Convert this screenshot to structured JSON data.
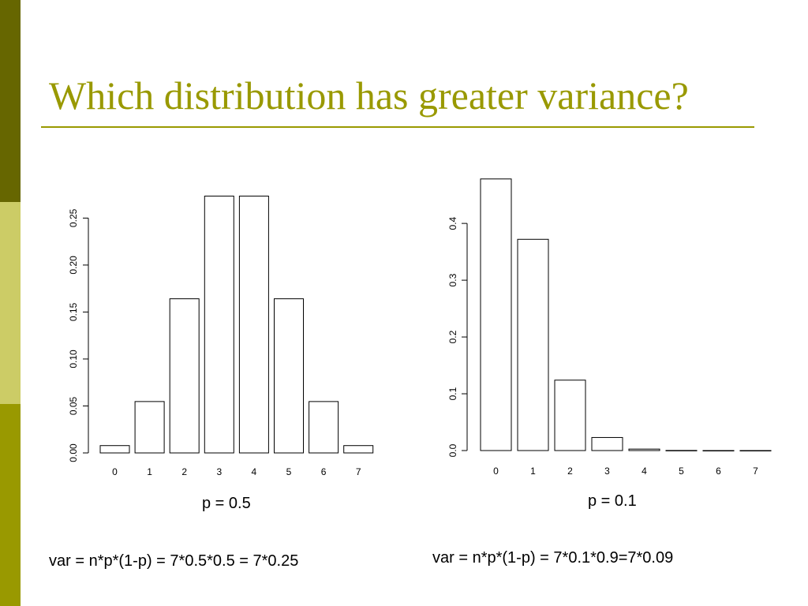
{
  "slide": {
    "title": "Which distribution has greater variance?",
    "colors": {
      "accent": "#999900",
      "sidebar_top": "#666600",
      "sidebar_middle": "#cccc66",
      "sidebar_bottom": "#999900"
    }
  },
  "chart_data": [
    {
      "type": "bar",
      "categories": [
        "0",
        "1",
        "2",
        "3",
        "4",
        "5",
        "6",
        "7"
      ],
      "values": [
        0.0078,
        0.0547,
        0.1641,
        0.2734,
        0.2734,
        0.1641,
        0.0547,
        0.0078
      ],
      "yticks": [
        "0.00",
        "0.05",
        "0.10",
        "0.15",
        "0.20",
        "0.25"
      ],
      "ylim": [
        0,
        0.273
      ],
      "grid": false,
      "label": "p = 0.5",
      "formula": "var = n*p*(1-p) = 7*0.5*0.5 = 7*0.25"
    },
    {
      "type": "bar",
      "categories": [
        "0",
        "1",
        "2",
        "3",
        "4",
        "5",
        "6",
        "7"
      ],
      "values": [
        0.4783,
        0.372,
        0.124,
        0.023,
        0.0026,
        0.0002,
        0.0,
        0.0
      ],
      "yticks": [
        "0.0",
        "0.1",
        "0.2",
        "0.3",
        "0.4"
      ],
      "ylim": [
        0,
        0.478
      ],
      "grid": false,
      "label": "p = 0.1",
      "formula": "var = n*p*(1-p) = 7*0.1*0.9=7*0.09"
    }
  ]
}
